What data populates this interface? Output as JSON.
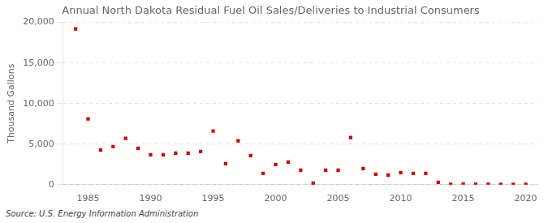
{
  "chart_data": {
    "type": "scatter",
    "title": "Annual North Dakota Residual Fuel Oil Sales/Deliveries to Industrial Consumers",
    "ylabel": "Thousand Gallons",
    "source": "Source: U.S. Energy Information Administration",
    "x": [
      1984,
      1985,
      1986,
      1987,
      1988,
      1989,
      1990,
      1991,
      1992,
      1993,
      1994,
      1995,
      1996,
      1997,
      1998,
      1999,
      2000,
      2001,
      2002,
      2003,
      2004,
      2005,
      2006,
      2007,
      2008,
      2009,
      2010,
      2011,
      2012,
      2013,
      2014,
      2015,
      2016,
      2017,
      2018,
      2019,
      2020
    ],
    "values": [
      19200,
      8100,
      4300,
      4700,
      5700,
      4500,
      3700,
      3700,
      3900,
      3900,
      4100,
      6600,
      2600,
      5400,
      3600,
      1400,
      2500,
      2800,
      1800,
      200,
      1800,
      1800,
      5800,
      2000,
      1300,
      1200,
      1500,
      1400,
      1400,
      300,
      50,
      100,
      80,
      60,
      50,
      50,
      50
    ],
    "color": "#cc0000",
    "marker": "square",
    "xlim": [
      1983,
      2021
    ],
    "xticks": [
      1985,
      1990,
      1995,
      2000,
      2005,
      2010,
      2015,
      2020
    ],
    "ylim": [
      0,
      20000
    ],
    "yticks": [
      0,
      {
        "value": 5000,
        "label": "5,000"
      },
      {
        "value": 10000,
        "label": "10,000"
      },
      {
        "value": 15000,
        "label": "15,000"
      },
      {
        "value": 20000,
        "label": "20,000"
      }
    ],
    "grid": true
  }
}
